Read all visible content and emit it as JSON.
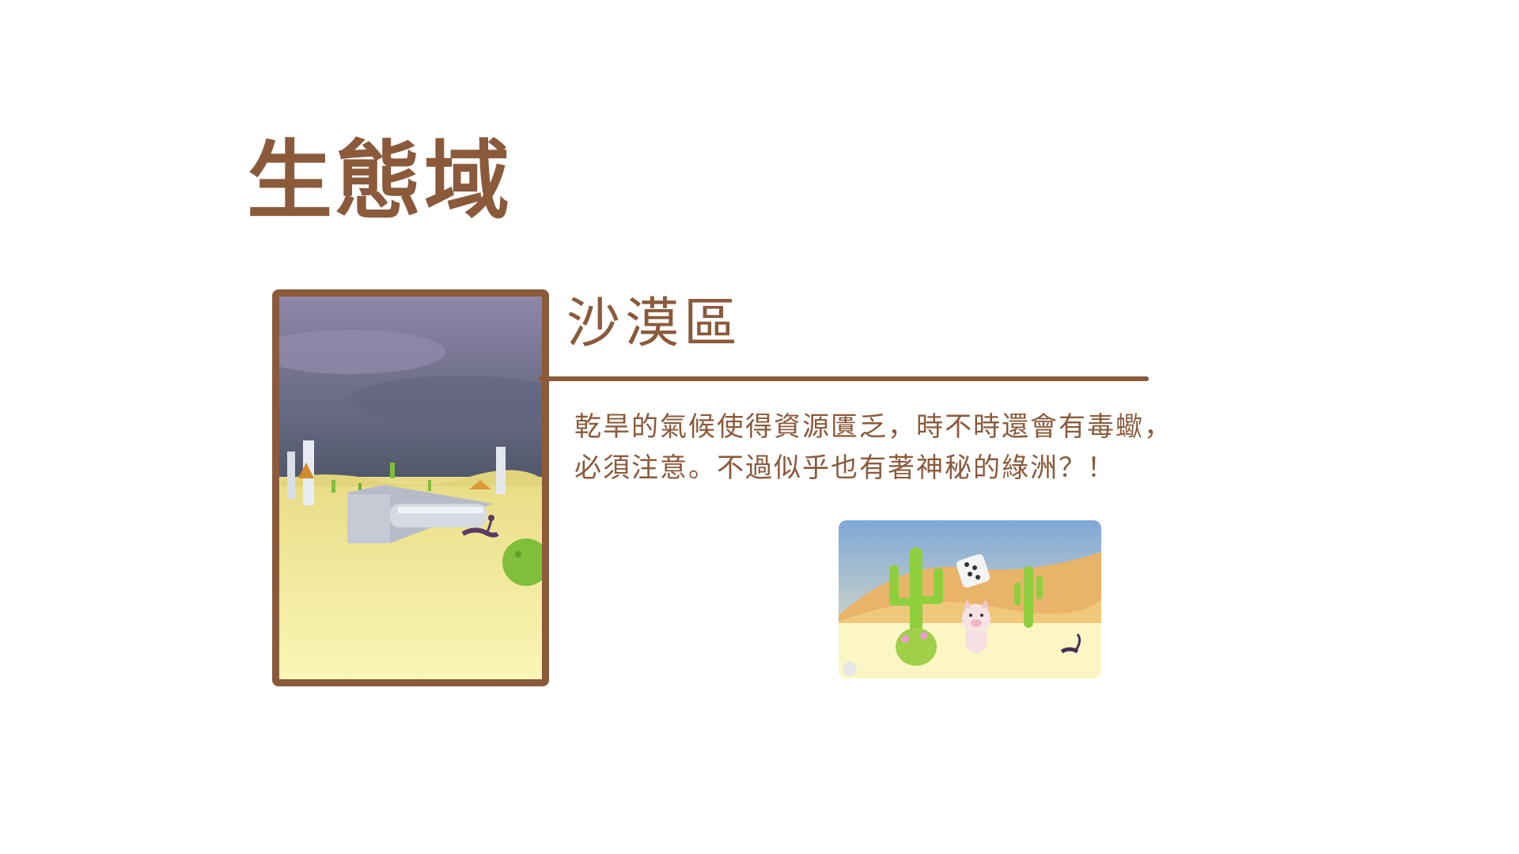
{
  "page": {
    "title": "生態域"
  },
  "section": {
    "title": "沙漠區",
    "description_lines": [
      "乾旱的氣候使得資源匱乏，時不時還會有毒蠍，",
      "必須注意。不過似乎也有著神秘的綠洲？！"
    ]
  },
  "images": {
    "main": "desert-scene-screenshot",
    "thumbnail": "desert-characters-screenshot"
  },
  "colors": {
    "accent": "#8a5a3b",
    "background": "#ffffff"
  }
}
